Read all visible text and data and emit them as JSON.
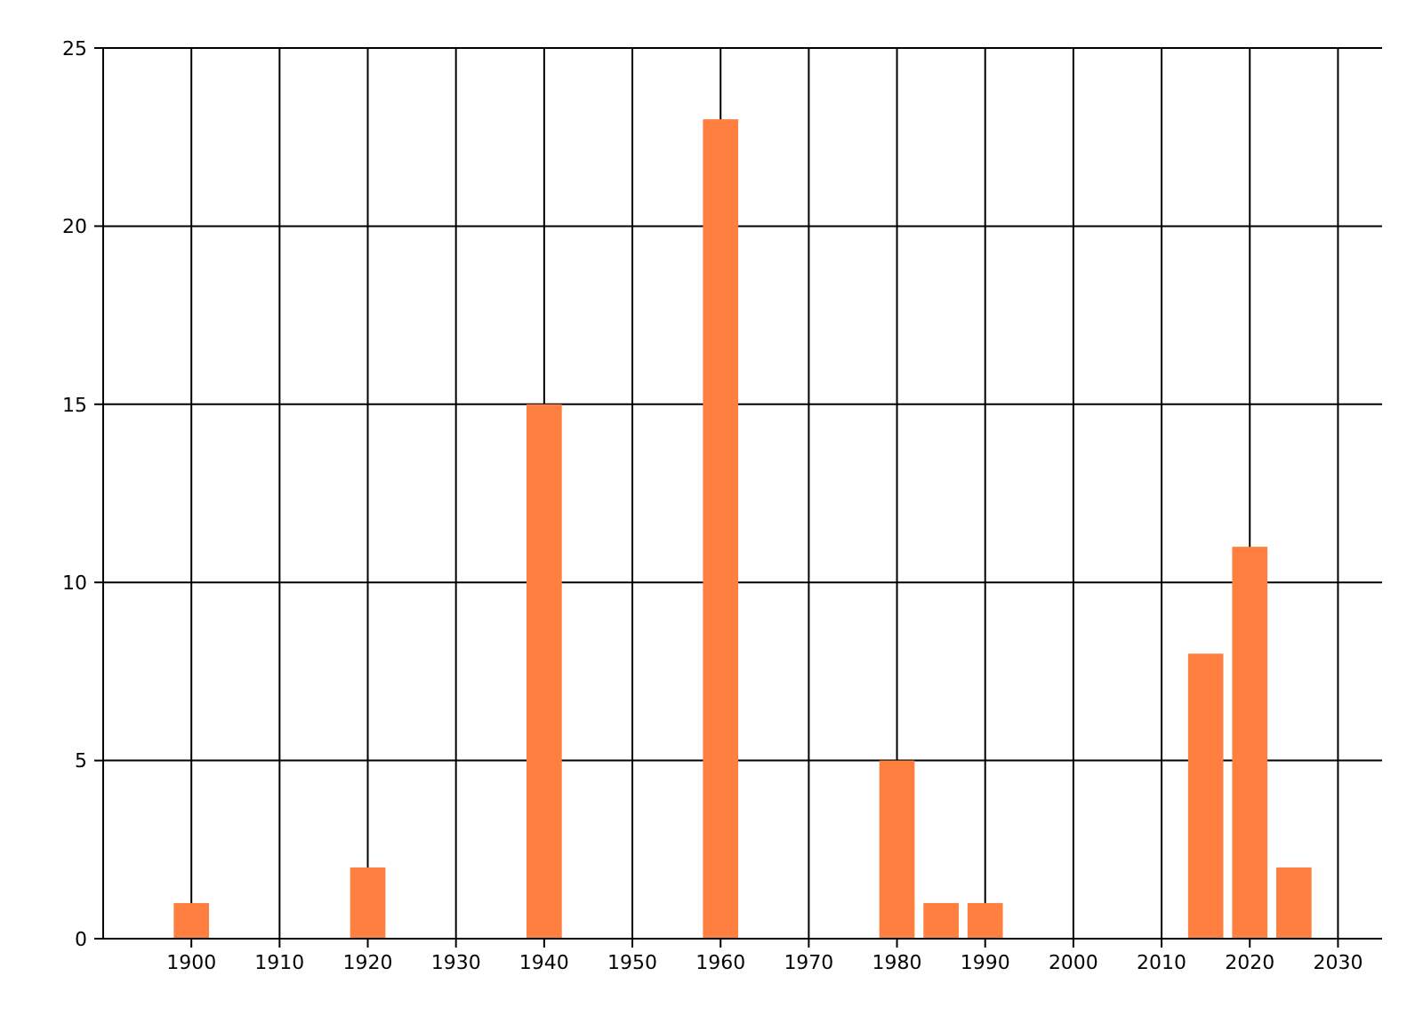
{
  "chart_data": {
    "type": "bar",
    "x": [
      1900,
      1920,
      1940,
      1960,
      1980,
      1985,
      1990,
      2015,
      2020,
      2025
    ],
    "values": [
      1,
      2,
      15,
      23,
      5,
      1,
      1,
      8,
      11,
      2
    ],
    "color": "#ff7f40",
    "xlim": [
      1890,
      2035
    ],
    "xticks": [
      1900,
      1910,
      1920,
      1930,
      1940,
      1950,
      1960,
      1970,
      1980,
      1990,
      2000,
      2010,
      2020,
      2030
    ],
    "ylim": [
      0,
      25
    ],
    "yticks": [
      0,
      5,
      10,
      15,
      20,
      25
    ],
    "grid": true
  }
}
